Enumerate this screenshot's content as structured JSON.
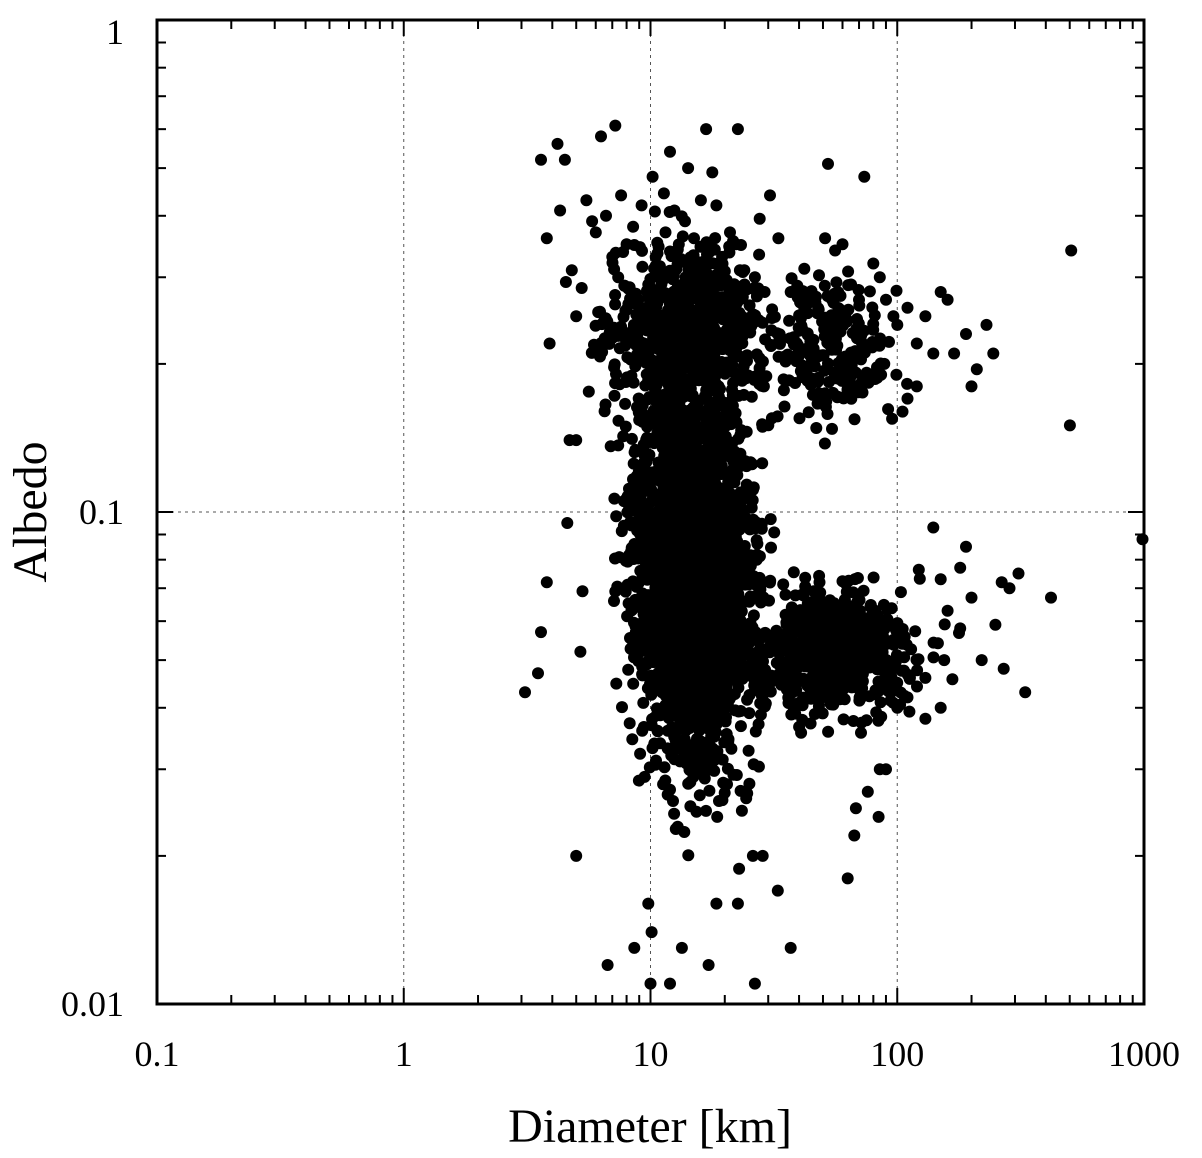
{
  "chart_data": {
    "type": "scatter",
    "xlabel": "Diameter [km]",
    "ylabel": "Albedo",
    "x_scale": "log",
    "y_scale": "log",
    "xlim": [
      0.1,
      1000
    ],
    "ylim": [
      0.01,
      1
    ],
    "x_ticks": [
      "0.1",
      "1",
      "10",
      "100",
      "1000"
    ],
    "y_ticks": [
      "0.01",
      "0.1",
      "1"
    ],
    "grid": true,
    "marker_color": "#000000",
    "points": [
      [
        3.6,
        0.52
      ],
      [
        4.2,
        0.56
      ],
      [
        4.5,
        0.52
      ],
      [
        6.3,
        0.58
      ],
      [
        7.2,
        0.61
      ],
      [
        10.2,
        0.48
      ],
      [
        12.0,
        0.54
      ],
      [
        14.2,
        0.5
      ],
      [
        16.8,
        0.6
      ],
      [
        17.8,
        0.49
      ],
      [
        22.6,
        0.6
      ],
      [
        30.5,
        0.44
      ],
      [
        52.4,
        0.51
      ],
      [
        73.5,
        0.48
      ],
      [
        507.0,
        0.34
      ],
      [
        501.0,
        0.15
      ],
      [
        986.0,
        0.088
      ],
      [
        3.8,
        0.36
      ],
      [
        3.9,
        0.22
      ],
      [
        4.3,
        0.41
      ],
      [
        4.8,
        0.31
      ],
      [
        5.0,
        0.25
      ],
      [
        5.5,
        0.43
      ],
      [
        5.8,
        0.39
      ],
      [
        6.0,
        0.37
      ],
      [
        6.6,
        0.4
      ],
      [
        7.0,
        0.33
      ],
      [
        7.4,
        0.3
      ],
      [
        7.6,
        0.44
      ],
      [
        8.0,
        0.35
      ],
      [
        8.5,
        0.38
      ],
      [
        9.2,
        0.42
      ],
      [
        9.8,
        0.29
      ],
      [
        10.5,
        0.33
      ],
      [
        11.5,
        0.37
      ],
      [
        12.5,
        0.41
      ],
      [
        13.8,
        0.39
      ],
      [
        15.0,
        0.36
      ],
      [
        16.0,
        0.43
      ],
      [
        18.5,
        0.42
      ],
      [
        19.5,
        0.33
      ],
      [
        21.0,
        0.37
      ],
      [
        24.0,
        0.31
      ],
      [
        26.5,
        0.3
      ],
      [
        29.0,
        0.28
      ],
      [
        33.0,
        0.36
      ],
      [
        37.0,
        0.28
      ],
      [
        42.0,
        0.26
      ],
      [
        46.0,
        0.27
      ],
      [
        51.0,
        0.36
      ],
      [
        56.0,
        0.34
      ],
      [
        60.0,
        0.35
      ],
      [
        65.0,
        0.29
      ],
      [
        70.0,
        0.27
      ],
      [
        80.0,
        0.32
      ],
      [
        85.0,
        0.3
      ],
      [
        90.0,
        0.27
      ],
      [
        110.0,
        0.26
      ],
      [
        130.0,
        0.25
      ],
      [
        150.0,
        0.28
      ],
      [
        160.0,
        0.27
      ],
      [
        190.0,
        0.23
      ],
      [
        230.0,
        0.24
      ],
      [
        245.0,
        0.21
      ],
      [
        140.0,
        0.21
      ],
      [
        120.0,
        0.22
      ],
      [
        100.0,
        0.24
      ],
      [
        3.1,
        0.043
      ],
      [
        3.5,
        0.047
      ],
      [
        3.6,
        0.057
      ],
      [
        3.8,
        0.072
      ],
      [
        4.6,
        0.095
      ],
      [
        4.7,
        0.14
      ],
      [
        5.0,
        0.14
      ],
      [
        5.2,
        0.052
      ],
      [
        5.3,
        0.069
      ],
      [
        5.0,
        0.02
      ],
      [
        6.7,
        0.012
      ],
      [
        8.6,
        0.013
      ],
      [
        10.0,
        0.011
      ],
      [
        9.8,
        0.016
      ],
      [
        10.1,
        0.014
      ],
      [
        12.0,
        0.011
      ],
      [
        13.4,
        0.013
      ],
      [
        17.2,
        0.012
      ],
      [
        18.5,
        0.016
      ],
      [
        22.6,
        0.016
      ],
      [
        26.5,
        0.011
      ],
      [
        32.8,
        0.017
      ],
      [
        37.0,
        0.013
      ],
      [
        28.5,
        0.02
      ],
      [
        26.0,
        0.02
      ],
      [
        63.0,
        0.018
      ],
      [
        67.0,
        0.022
      ],
      [
        68.0,
        0.025
      ],
      [
        76.0,
        0.027
      ],
      [
        84.0,
        0.024
      ],
      [
        90.0,
        0.03
      ],
      [
        85.0,
        0.03
      ],
      [
        160.0,
        0.063
      ],
      [
        180.0,
        0.058
      ],
      [
        200.0,
        0.067
      ],
      [
        220.0,
        0.05
      ],
      [
        250.0,
        0.059
      ],
      [
        265.0,
        0.072
      ],
      [
        285.0,
        0.07
      ],
      [
        310.0,
        0.075
      ],
      [
        330.0,
        0.043
      ],
      [
        420.0,
        0.067
      ],
      [
        270.0,
        0.048
      ],
      [
        180.0,
        0.077
      ],
      [
        190.0,
        0.085
      ],
      [
        150.0,
        0.073
      ],
      [
        140.0,
        0.093
      ],
      [
        155.0,
        0.05
      ],
      [
        130.0,
        0.046
      ],
      [
        150.0,
        0.04
      ],
      [
        130.0,
        0.038
      ],
      [
        100.0,
        0.04
      ],
      [
        110.0,
        0.042
      ],
      [
        200.0,
        0.18
      ],
      [
        210.0,
        0.195
      ],
      [
        170.0,
        0.21
      ],
      [
        120.0,
        0.18
      ],
      [
        110.0,
        0.17
      ],
      [
        105.0,
        0.16
      ]
    ]
  }
}
